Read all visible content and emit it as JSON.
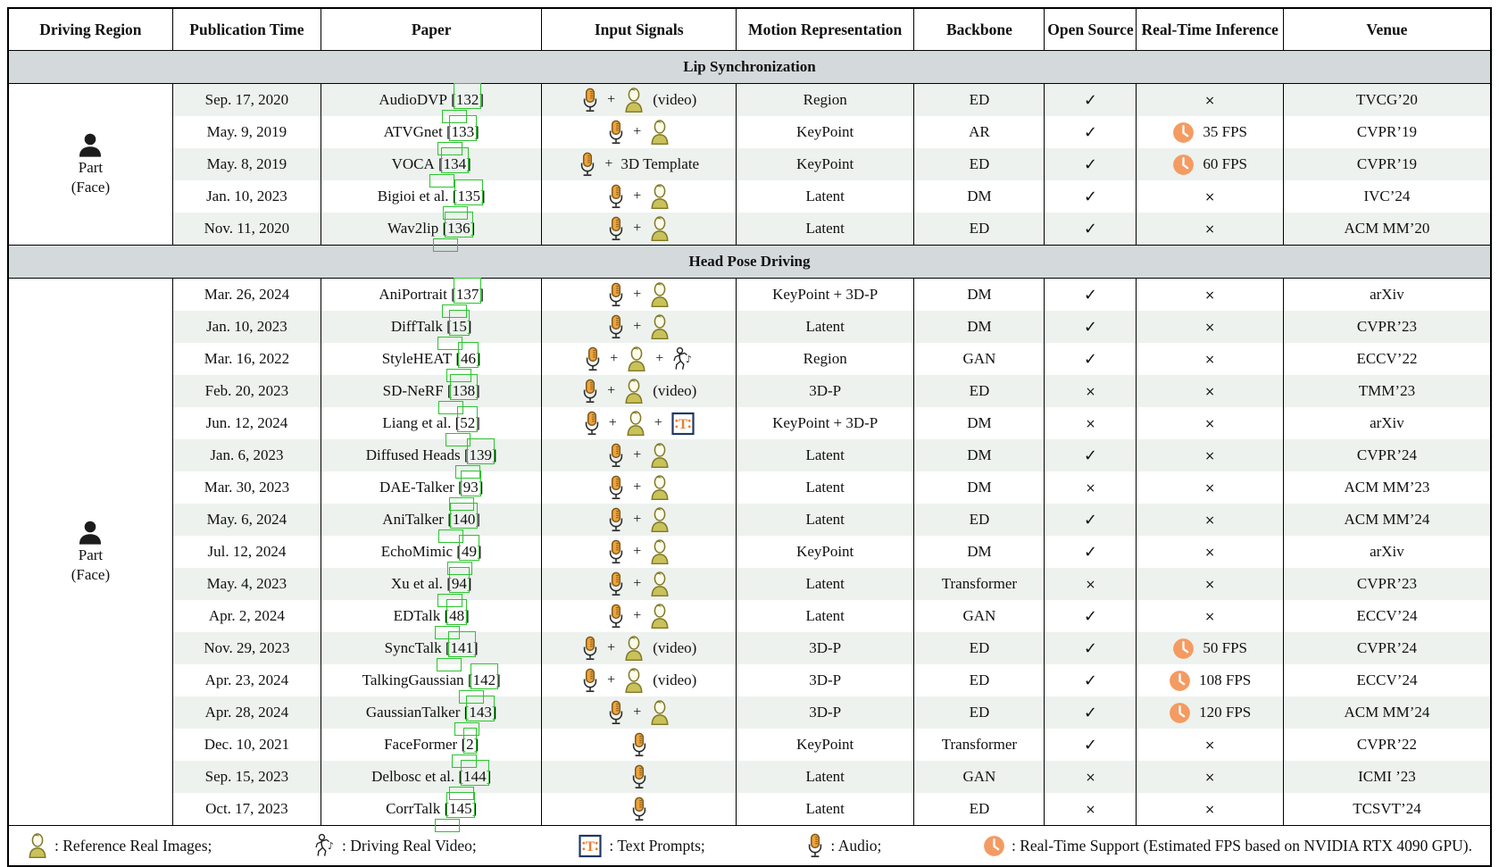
{
  "table": {
    "columns": [
      "Driving Region",
      "Publication Time",
      "Paper",
      "Input Signals",
      "Motion Representation",
      "Backbone",
      "Open Source",
      "Real-Time Inference",
      "Venue"
    ],
    "sections": [
      {
        "title": "Lip Synchronization",
        "region": {
          "line1": "Part",
          "line2": "(Face)"
        },
        "rows": [
          {
            "date": "Sep. 17, 2020",
            "paper": "AudioDVP",
            "cite": "132",
            "inputs": [
              "audio",
              "+",
              "person",
              "(video)"
            ],
            "motion": "Region",
            "backbone": "ED",
            "open": "✓",
            "realtime": "×",
            "venue": "TVCG’20"
          },
          {
            "date": "May. 9, 2019",
            "paper": "ATVGnet",
            "cite": "133",
            "inputs": [
              "audio",
              "+",
              "person"
            ],
            "motion": "KeyPoint",
            "backbone": "AR",
            "open": "✓",
            "realtime": "35 FPS",
            "venue": "CVPR’19"
          },
          {
            "date": "May. 8, 2019",
            "paper": "VOCA",
            "cite": "134",
            "inputs": [
              "audio",
              "+",
              "3D Template"
            ],
            "motion": "KeyPoint",
            "backbone": "ED",
            "open": "✓",
            "realtime": "60 FPS",
            "venue": "CVPR’19"
          },
          {
            "date": "Jan. 10, 2023",
            "paper": "Bigioi et al.",
            "cite": "135",
            "inputs": [
              "audio",
              "+",
              "person"
            ],
            "motion": "Latent",
            "backbone": "DM",
            "open": "✓",
            "realtime": "×",
            "venue": "IVC’24"
          },
          {
            "date": "Nov. 11, 2020",
            "paper": "Wav2lip",
            "cite": "136",
            "inputs": [
              "audio",
              "+",
              "person"
            ],
            "motion": "Latent",
            "backbone": "ED",
            "open": "✓",
            "realtime": "×",
            "venue": "ACM MM’20"
          }
        ]
      },
      {
        "title": "Head Pose Driving",
        "region": {
          "line1": "Part",
          "line2": "(Face)"
        },
        "rows": [
          {
            "date": "Mar. 26, 2024",
            "paper": "AniPortrait",
            "cite": "137",
            "inputs": [
              "audio",
              "+",
              "person"
            ],
            "motion": "KeyPoint + 3D-P",
            "backbone": "DM",
            "open": "✓",
            "realtime": "×",
            "venue": "arXiv"
          },
          {
            "date": "Jan. 10, 2023",
            "paper": "DiffTalk",
            "cite": "15",
            "inputs": [
              "audio",
              "+",
              "person"
            ],
            "motion": "Latent",
            "backbone": "DM",
            "open": "✓",
            "realtime": "×",
            "venue": "CVPR’23"
          },
          {
            "date": "Mar. 16, 2022",
            "paper": "StyleHEAT",
            "cite": "46",
            "inputs": [
              "audio",
              "+",
              "person",
              "+",
              "dancer"
            ],
            "motion": "Region",
            "backbone": "GAN",
            "open": "✓",
            "realtime": "×",
            "venue": "ECCV’22"
          },
          {
            "date": "Feb. 20, 2023",
            "paper": "SD-NeRF",
            "cite": "138",
            "inputs": [
              "audio",
              "+",
              "person",
              "(video)"
            ],
            "motion": "3D-P",
            "backbone": "ED",
            "open": "×",
            "realtime": "×",
            "venue": "TMM’23"
          },
          {
            "date": "Jun. 12, 2024",
            "paper": "Liang et al.",
            "cite": "52",
            "inputs": [
              "audio",
              "+",
              "person",
              "+",
              "textprompt"
            ],
            "motion": "KeyPoint + 3D-P",
            "backbone": "DM",
            "open": "×",
            "realtime": "×",
            "venue": "arXiv"
          },
          {
            "date": "Jan. 6, 2023",
            "paper": "Diffused Heads",
            "cite": "139",
            "inputs": [
              "audio",
              "+",
              "person"
            ],
            "motion": "Latent",
            "backbone": "DM",
            "open": "✓",
            "realtime": "×",
            "venue": "CVPR’24"
          },
          {
            "date": "Mar. 30, 2023",
            "paper": "DAE-Talker",
            "cite": "93",
            "inputs": [
              "audio",
              "+",
              "person"
            ],
            "motion": "Latent",
            "backbone": "DM",
            "open": "×",
            "realtime": "×",
            "venue": "ACM MM’23"
          },
          {
            "date": "May. 6, 2024",
            "paper": "AniTalker",
            "cite": "140",
            "inputs": [
              "audio",
              "+",
              "person"
            ],
            "motion": "Latent",
            "backbone": "ED",
            "open": "✓",
            "realtime": "×",
            "venue": "ACM MM’24"
          },
          {
            "date": "Jul. 12, 2024",
            "paper": "EchoMimic",
            "cite": "49",
            "inputs": [
              "audio",
              "+",
              "person"
            ],
            "motion": "KeyPoint",
            "backbone": "DM",
            "open": "✓",
            "realtime": "×",
            "venue": "arXiv"
          },
          {
            "date": "May. 4, 2023",
            "paper": "Xu et al.",
            "cite": "94",
            "inputs": [
              "audio",
              "+",
              "person"
            ],
            "motion": "Latent",
            "backbone": "Transformer",
            "open": "×",
            "realtime": "×",
            "venue": "CVPR’23"
          },
          {
            "date": "Apr. 2, 2024",
            "paper": "EDTalk",
            "cite": "48",
            "inputs": [
              "audio",
              "+",
              "person"
            ],
            "motion": "Latent",
            "backbone": "GAN",
            "open": "✓",
            "realtime": "×",
            "venue": "ECCV’24"
          },
          {
            "date": "Nov. 29, 2023",
            "paper": "SyncTalk",
            "cite": "141",
            "inputs": [
              "audio",
              "+",
              "person",
              "(video)"
            ],
            "motion": "3D-P",
            "backbone": "ED",
            "open": "✓",
            "realtime": "50 FPS",
            "venue": "CVPR’24"
          },
          {
            "date": "Apr. 23, 2024",
            "paper": "TalkingGaussian",
            "cite": "142",
            "inputs": [
              "audio",
              "+",
              "person",
              "(video)"
            ],
            "motion": "3D-P",
            "backbone": "ED",
            "open": "✓",
            "realtime": "108 FPS",
            "venue": "ECCV’24"
          },
          {
            "date": "Apr. 28, 2024",
            "paper": "GaussianTalker",
            "cite": "143",
            "inputs": [
              "audio",
              "+",
              "person"
            ],
            "motion": "3D-P",
            "backbone": "ED",
            "open": "✓",
            "realtime": "120 FPS",
            "venue": "ACM MM’24"
          },
          {
            "date": "Dec. 10, 2021",
            "paper": "FaceFormer",
            "cite": "2",
            "inputs": [
              "audio"
            ],
            "motion": "KeyPoint",
            "backbone": "Transformer",
            "open": "✓",
            "realtime": "×",
            "venue": "CVPR’22"
          },
          {
            "date": "Sep. 15, 2023",
            "paper": "Delbosc et al.",
            "cite": "144",
            "inputs": [
              "audio"
            ],
            "motion": "Latent",
            "backbone": "GAN",
            "open": "×",
            "realtime": "×",
            "venue": "ICMI ’23"
          },
          {
            "date": "Oct. 17, 2023",
            "paper": "CorrTalk",
            "cite": "145",
            "inputs": [
              "audio"
            ],
            "motion": "Latent",
            "backbone": "ED",
            "open": "×",
            "realtime": "×",
            "venue": "TCSVT’24"
          }
        ]
      }
    ]
  },
  "legend": {
    "items": [
      {
        "icon": "person",
        "label": ": Reference Real Images;"
      },
      {
        "icon": "dancer",
        "label": ": Driving Real Video;"
      },
      {
        "icon": "textprompt",
        "label": ": Text Prompts;"
      },
      {
        "icon": "audio",
        "label": ": Audio;"
      },
      {
        "icon": "clock",
        "label": ": Real-Time Support (Estimated FPS based on NVIDIA RTX 4090 GPU)."
      }
    ]
  },
  "colors": {
    "link_green": "#2bc42d",
    "section_band": "#d4d9db",
    "row_alternate": "#edf2ee",
    "clock_orange": "#f49b62",
    "mic_orange": "#f0a238",
    "person_body": "#c9c25b",
    "text_prompt_orange": "#ed7d31",
    "text_prompt_navy": "#1f3864"
  }
}
